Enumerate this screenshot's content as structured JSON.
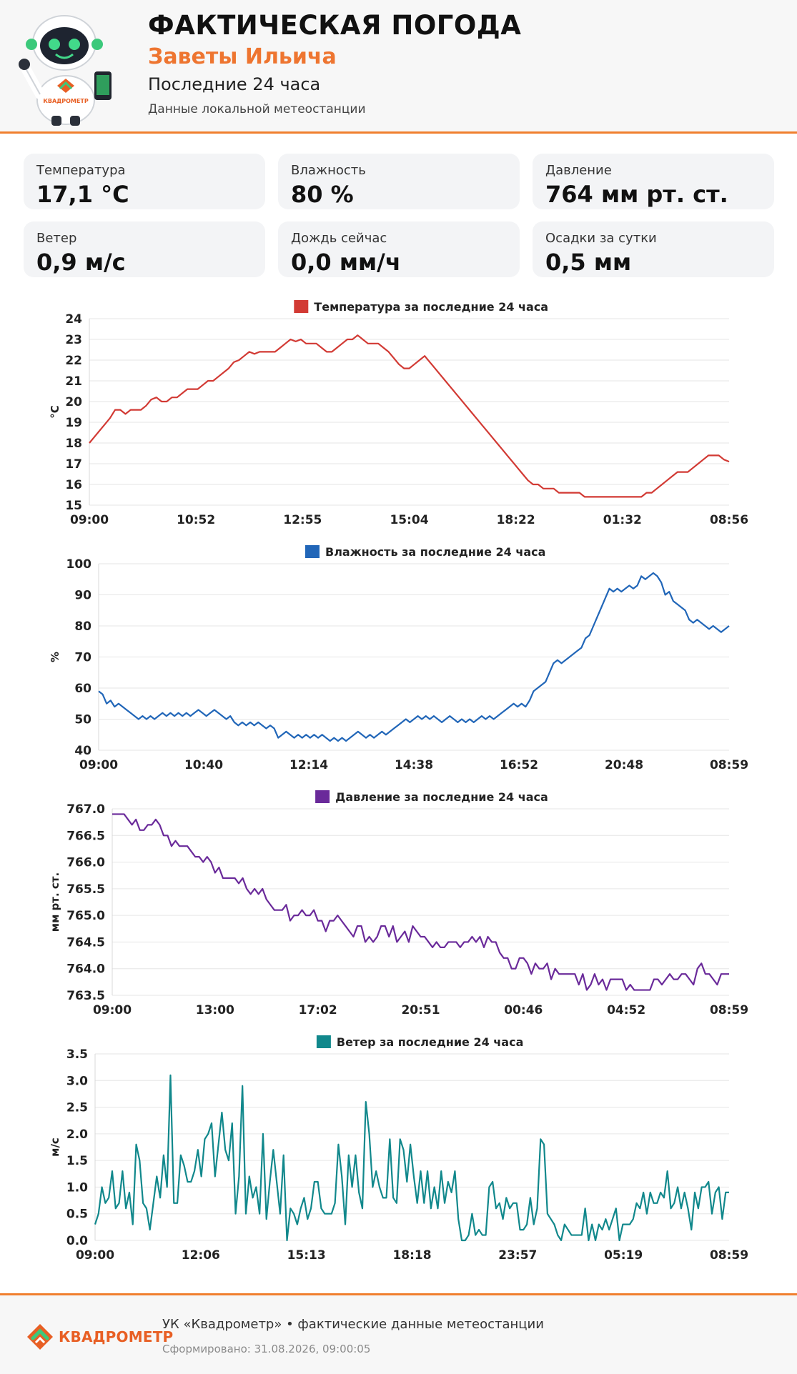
{
  "header": {
    "title": "ФАКТИЧЕСКАЯ ПОГОДА",
    "place": "Заветы Ильича",
    "period": "Последние 24 часа",
    "source": "Данные локальной метеостанции",
    "robot_badge": "КВАДРОМЕТР"
  },
  "cards": [
    {
      "label": "Температура",
      "value": "17,1 °C"
    },
    {
      "label": "Влажность",
      "value": "80 %"
    },
    {
      "label": "Давление",
      "value": "764 мм рт. ст."
    },
    {
      "label": "Ветер",
      "value": "0,9 м/с"
    },
    {
      "label": "Дождь сейчас",
      "value": "0,0 мм/ч"
    },
    {
      "label": "Осадки за сутки",
      "value": "0,5 мм"
    }
  ],
  "colors": {
    "accent": "#f07f2e",
    "temperature": "#d23a34",
    "humidity": "#2166b8",
    "pressure": "#6a2a9a",
    "wind": "#11888c"
  },
  "chart_data": [
    {
      "type": "line",
      "title": "Температура за последние 24 часа",
      "ylabel": "°C",
      "color": "#d23a34",
      "ylim": [
        15,
        24
      ],
      "yticks": [
        15,
        16,
        17,
        18,
        19,
        20,
        21,
        22,
        23,
        24
      ],
      "ytick_decimals": 0,
      "xticks": [
        "09:00",
        "10:52",
        "12:55",
        "15:04",
        "18:22",
        "01:32",
        "08:56"
      ],
      "grid": true,
      "legend": "top-center",
      "values": [
        18.0,
        18.3,
        18.6,
        18.9,
        19.2,
        19.6,
        19.6,
        19.4,
        19.6,
        19.6,
        19.6,
        19.8,
        20.1,
        20.2,
        20.0,
        20.0,
        20.2,
        20.2,
        20.4,
        20.6,
        20.6,
        20.6,
        20.8,
        21.0,
        21.0,
        21.2,
        21.4,
        21.6,
        21.9,
        22.0,
        22.2,
        22.4,
        22.3,
        22.4,
        22.4,
        22.4,
        22.4,
        22.6,
        22.8,
        23.0,
        22.9,
        23.0,
        22.8,
        22.8,
        22.8,
        22.6,
        22.4,
        22.4,
        22.6,
        22.8,
        23.0,
        23.0,
        23.2,
        23.0,
        22.8,
        22.8,
        22.8,
        22.6,
        22.4,
        22.1,
        21.8,
        21.6,
        21.6,
        21.8,
        22.0,
        22.2,
        21.9,
        21.6,
        21.3,
        21.0,
        20.7,
        20.4,
        20.1,
        19.8,
        19.5,
        19.2,
        18.9,
        18.6,
        18.3,
        18.0,
        17.7,
        17.4,
        17.1,
        16.8,
        16.5,
        16.2,
        16.0,
        16.0,
        15.8,
        15.8,
        15.8,
        15.6,
        15.6,
        15.6,
        15.6,
        15.6,
        15.4,
        15.4,
        15.4,
        15.4,
        15.4,
        15.4,
        15.4,
        15.4,
        15.4,
        15.4,
        15.4,
        15.4,
        15.6,
        15.6,
        15.8,
        16.0,
        16.2,
        16.4,
        16.6,
        16.6,
        16.6,
        16.8,
        17.0,
        17.2,
        17.4,
        17.4,
        17.4,
        17.2,
        17.1
      ]
    },
    {
      "type": "line",
      "title": "Влажность за последние 24 часа",
      "ylabel": "%",
      "color": "#2166b8",
      "ylim": [
        40,
        100
      ],
      "yticks": [
        40,
        50,
        60,
        70,
        80,
        90,
        100
      ],
      "ytick_decimals": 0,
      "xticks": [
        "09:00",
        "10:40",
        "12:14",
        "14:38",
        "16:52",
        "20:48",
        "08:59"
      ],
      "grid": true,
      "legend": "top-center",
      "values": [
        59,
        58,
        55,
        56,
        54,
        55,
        54,
        53,
        52,
        51,
        50,
        51,
        50,
        51,
        50,
        51,
        52,
        51,
        52,
        51,
        52,
        51,
        52,
        51,
        52,
        53,
        52,
        51,
        52,
        53,
        52,
        51,
        50,
        51,
        49,
        48,
        49,
        48,
        49,
        48,
        49,
        48,
        47,
        48,
        47,
        44,
        45,
        46,
        45,
        44,
        45,
        44,
        45,
        44,
        45,
        44,
        45,
        44,
        43,
        44,
        43,
        44,
        43,
        44,
        45,
        46,
        45,
        44,
        45,
        44,
        45,
        46,
        45,
        46,
        47,
        48,
        49,
        50,
        49,
        50,
        51,
        50,
        51,
        50,
        51,
        50,
        49,
        50,
        51,
        50,
        49,
        50,
        49,
        50,
        49,
        50,
        51,
        50,
        51,
        50,
        51,
        52,
        53,
        54,
        55,
        54,
        55,
        54,
        56,
        59,
        60,
        61,
        62,
        65,
        68,
        69,
        68,
        69,
        70,
        71,
        72,
        73,
        76,
        77,
        80,
        83,
        86,
        89,
        92,
        91,
        92,
        91,
        92,
        93,
        92,
        93,
        96,
        95,
        96,
        97,
        96,
        94,
        90,
        91,
        88,
        87,
        86,
        85,
        82,
        81,
        82,
        81,
        80,
        79,
        80,
        79,
        78,
        79,
        80
      ]
    },
    {
      "type": "line",
      "title": "Давление за последние 24 часа",
      "ylabel": "мм рт. ст.",
      "color": "#6a2a9a",
      "ylim": [
        763.5,
        767.0
      ],
      "yticks": [
        763.5,
        764.0,
        764.5,
        765.0,
        765.5,
        766.0,
        766.5,
        767.0
      ],
      "ytick_decimals": 1,
      "xticks": [
        "09:00",
        "13:00",
        "17:02",
        "20:51",
        "00:46",
        "04:52",
        "08:59"
      ],
      "grid": true,
      "legend": "top-center",
      "values": [
        766.9,
        766.9,
        766.9,
        766.9,
        766.8,
        766.7,
        766.8,
        766.6,
        766.6,
        766.7,
        766.7,
        766.8,
        766.7,
        766.5,
        766.5,
        766.3,
        766.4,
        766.3,
        766.3,
        766.3,
        766.2,
        766.1,
        766.1,
        766.0,
        766.1,
        766.0,
        765.8,
        765.9,
        765.7,
        765.7,
        765.7,
        765.7,
        765.6,
        765.7,
        765.5,
        765.4,
        765.5,
        765.4,
        765.5,
        765.3,
        765.2,
        765.1,
        765.1,
        765.1,
        765.2,
        764.9,
        765.0,
        765.0,
        765.1,
        765.0,
        765.0,
        765.1,
        764.9,
        764.9,
        764.7,
        764.9,
        764.9,
        765.0,
        764.9,
        764.8,
        764.7,
        764.6,
        764.8,
        764.8,
        764.5,
        764.6,
        764.5,
        764.6,
        764.8,
        764.8,
        764.6,
        764.8,
        764.5,
        764.6,
        764.7,
        764.5,
        764.8,
        764.7,
        764.6,
        764.6,
        764.5,
        764.4,
        764.5,
        764.4,
        764.4,
        764.5,
        764.5,
        764.5,
        764.4,
        764.5,
        764.5,
        764.6,
        764.5,
        764.6,
        764.4,
        764.6,
        764.5,
        764.5,
        764.3,
        764.2,
        764.2,
        764.0,
        764.0,
        764.2,
        764.2,
        764.1,
        763.9,
        764.1,
        764.0,
        764.0,
        764.1,
        763.8,
        764.0,
        763.9,
        763.9,
        763.9,
        763.9,
        763.9,
        763.7,
        763.9,
        763.6,
        763.7,
        763.9,
        763.7,
        763.8,
        763.6,
        763.8,
        763.8,
        763.8,
        763.8,
        763.6,
        763.7,
        763.6,
        763.6,
        763.6,
        763.6,
        763.6,
        763.8,
        763.8,
        763.7,
        763.8,
        763.9,
        763.8,
        763.8,
        763.9,
        763.9,
        763.8,
        763.7,
        764.0,
        764.1,
        763.9,
        763.9,
        763.8,
        763.7,
        763.9,
        763.9,
        763.9
      ]
    },
    {
      "type": "line",
      "title": "Ветер за последние 24 часа",
      "ylabel": "м/с",
      "color": "#11888c",
      "ylim": [
        0,
        3.5
      ],
      "yticks": [
        0,
        0.5,
        1.0,
        1.5,
        2.0,
        2.5,
        3.0,
        3.5
      ],
      "ytick_decimals": 1,
      "xticks": [
        "09:00",
        "12:06",
        "15:13",
        "18:18",
        "23:57",
        "05:19",
        "08:59"
      ],
      "grid": true,
      "legend": "top-center",
      "values": [
        0.3,
        0.5,
        1.0,
        0.7,
        0.8,
        1.3,
        0.6,
        0.7,
        1.3,
        0.6,
        0.9,
        0.3,
        1.8,
        1.5,
        0.7,
        0.6,
        0.2,
        0.7,
        1.2,
        0.8,
        1.6,
        1.0,
        3.1,
        0.7,
        0.7,
        1.6,
        1.4,
        1.1,
        1.1,
        1.3,
        1.7,
        1.2,
        1.9,
        2.0,
        2.2,
        1.2,
        1.8,
        2.4,
        1.7,
        1.5,
        2.2,
        0.5,
        1.2,
        2.9,
        0.5,
        1.2,
        0.8,
        1.0,
        0.5,
        2.0,
        0.4,
        1.1,
        1.7,
        1.1,
        0.5,
        1.6,
        0.0,
        0.6,
        0.5,
        0.3,
        0.6,
        0.8,
        0.4,
        0.6,
        1.1,
        1.1,
        0.6,
        0.5,
        0.5,
        0.5,
        0.7,
        1.8,
        1.2,
        0.3,
        1.6,
        1.0,
        1.6,
        0.9,
        0.6,
        2.6,
        2.0,
        1.0,
        1.3,
        1.0,
        0.8,
        0.8,
        1.9,
        0.8,
        0.7,
        1.9,
        1.7,
        1.1,
        1.8,
        1.2,
        0.7,
        1.3,
        0.7,
        1.3,
        0.6,
        1.0,
        0.6,
        1.3,
        0.7,
        1.1,
        0.9,
        1.3,
        0.4,
        0.0,
        0.0,
        0.1,
        0.5,
        0.1,
        0.2,
        0.1,
        0.1,
        1.0,
        1.1,
        0.6,
        0.7,
        0.4,
        0.8,
        0.6,
        0.7,
        0.7,
        0.2,
        0.2,
        0.3,
        0.8,
        0.3,
        0.6,
        1.9,
        1.8,
        0.5,
        0.4,
        0.3,
        0.1,
        0.0,
        0.3,
        0.2,
        0.1,
        0.1,
        0.1,
        0.1,
        0.6,
        0.0,
        0.3,
        0.0,
        0.3,
        0.2,
        0.4,
        0.2,
        0.4,
        0.6,
        0.0,
        0.3,
        0.3,
        0.3,
        0.4,
        0.7,
        0.6,
        0.9,
        0.5,
        0.9,
        0.7,
        0.7,
        0.9,
        0.8,
        1.3,
        0.6,
        0.7,
        1.0,
        0.6,
        0.9,
        0.6,
        0.2,
        0.9,
        0.6,
        1.0,
        1.0,
        1.1,
        0.5,
        0.9,
        1.0,
        0.4,
        0.9,
        0.9
      ]
    }
  ],
  "footer": {
    "logo_text": "КВАДРОМЕТР",
    "main": "УК «Квадрометр» • фактические данные метеостанции",
    "generated": "Сформировано: 31.08.2026, 09:00:05"
  }
}
